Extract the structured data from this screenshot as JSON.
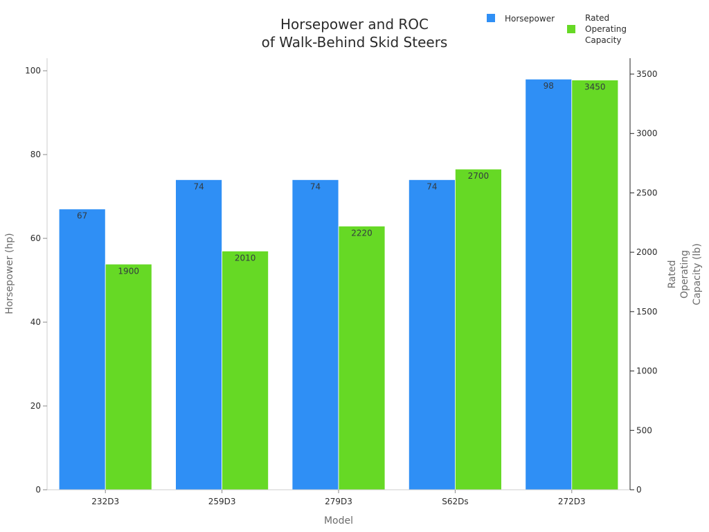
{
  "chart_data": {
    "type": "bar",
    "title": "Horsepower and ROC of Walk-Behind Skid Steers",
    "title_lines": [
      "Horsepower and ROC",
      "of Walk-Behind Skid Steers"
    ],
    "xlabel": "Model",
    "ylabel": "Horsepower (hp)",
    "y2label": "Rated Operating Capacity (lb)",
    "y2label_lines": [
      "Rated",
      "Operating",
      "Capacity (lb)"
    ],
    "categories": [
      "232D3",
      "259D3",
      "279D3",
      "S62Ds",
      "272D3"
    ],
    "series": [
      {
        "name": "Horsepower",
        "axis": "left",
        "color": "#2f8ff5",
        "values": [
          67,
          74,
          74,
          74,
          98
        ]
      },
      {
        "name": "Rated Operating Capacity",
        "axis": "right",
        "color": "#66d925",
        "values": [
          1900,
          2010,
          2220,
          2700,
          3450
        ]
      }
    ],
    "ylim": [
      0,
      103
    ],
    "y2lim": [
      0,
      3634
    ],
    "yticks": [
      0,
      20,
      40,
      60,
      80,
      100
    ],
    "y2ticks": [
      0,
      500,
      1000,
      1500,
      2000,
      2500,
      3000,
      3500
    ],
    "grid": false,
    "legend_position": "top-right",
    "data_labels": true
  },
  "legend": {
    "items": [
      {
        "label_lines": [
          "Horsepower"
        ],
        "color": "#2f8ff5"
      },
      {
        "label_lines": [
          "Rated",
          "Operating",
          "Capacity"
        ],
        "color": "#66d925"
      }
    ]
  }
}
